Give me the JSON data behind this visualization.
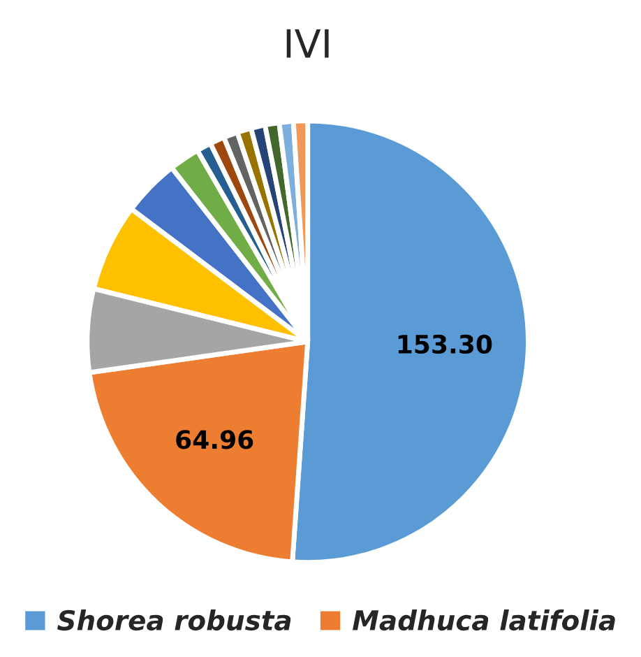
{
  "chart_data": {
    "type": "pie",
    "title": "IVI",
    "categories": [
      "Shorea robusta",
      "Madhuca latifolia",
      null,
      null,
      null,
      null,
      null,
      null,
      null,
      null,
      null,
      null,
      null,
      null
    ],
    "values": [
      153.3,
      64.96,
      18.3,
      19.2,
      12.5,
      6.7,
      3.2,
      3.2,
      3.1,
      3.1,
      3.1,
      3.1,
      3.1,
      3.1
    ],
    "value_labels": [
      "153.30",
      "64.96",
      null,
      null,
      null,
      null,
      null,
      null,
      null,
      null,
      null,
      null,
      null,
      null
    ],
    "colors": [
      "#5b9bd5",
      "#ed7d31",
      "#a5a5a5",
      "#ffc000",
      "#4472c4",
      "#70ad47",
      "#255e91",
      "#9e480e",
      "#636363",
      "#997300",
      "#264478",
      "#43682b",
      "#7cafdd",
      "#f1975a"
    ],
    "legend": "bottom"
  }
}
